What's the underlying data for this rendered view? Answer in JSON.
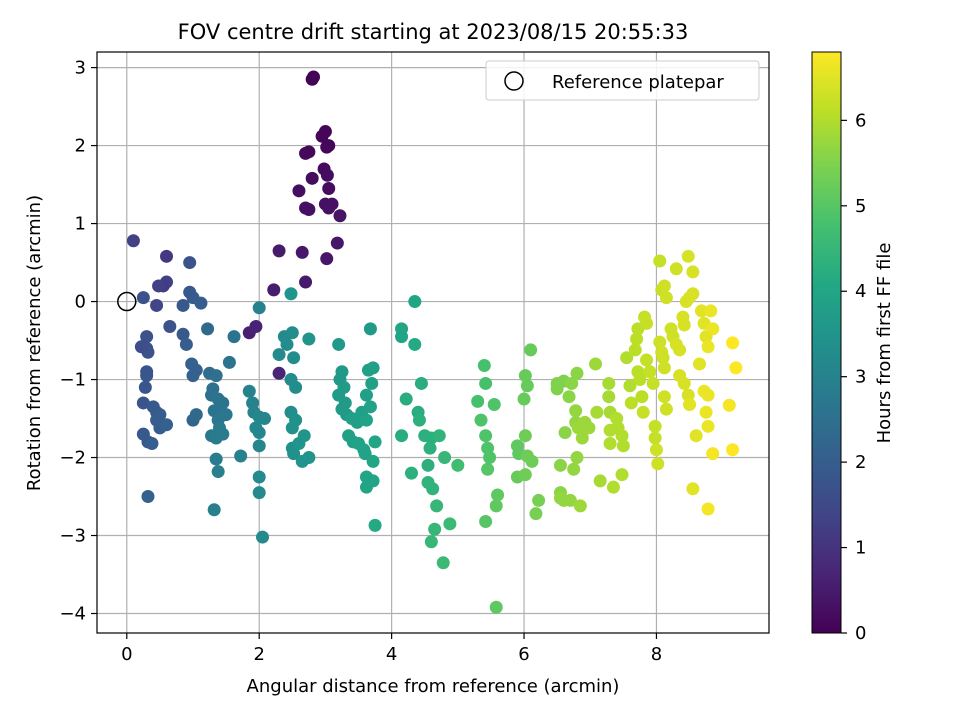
{
  "chart_data": {
    "type": "scatter",
    "title": "FOV centre drift starting at 2023/08/15 20:55:33",
    "xlabel": "Angular distance from reference (arcmin)",
    "ylabel": "Rotation from reference (arcmin)",
    "xlim": [
      -0.45,
      9.7
    ],
    "ylim": [
      -4.25,
      3.2
    ],
    "x_ticks": [
      0,
      2,
      4,
      6,
      8
    ],
    "y_ticks": [
      -4,
      -3,
      -2,
      -1,
      0,
      1,
      2,
      3
    ],
    "x_tick_labels": [
      "0",
      "2",
      "4",
      "6",
      "8"
    ],
    "y_tick_labels": [
      "−4",
      "−3",
      "−2",
      "−1",
      "0",
      "1",
      "2",
      "3"
    ],
    "grid": true,
    "legend": {
      "position": "top-right",
      "entries": [
        {
          "label": "Reference platepar",
          "marker": "open-circle"
        }
      ]
    },
    "reference_point": {
      "x": 0,
      "y": 0
    },
    "colorbar": {
      "label": "Hours from first FF file",
      "colormap": "viridis",
      "range": [
        0,
        6.8
      ],
      "ticks": [
        0,
        1,
        2,
        3,
        4,
        5,
        6
      ],
      "tick_labels": [
        "0",
        "1",
        "2",
        "3",
        "4",
        "5",
        "6"
      ]
    },
    "points": [
      [
        2.8,
        2.85,
        0.05
      ],
      [
        2.82,
        2.88,
        0.05
      ],
      [
        2.95,
        2.12,
        0.1
      ],
      [
        3.0,
        2.18,
        0.1
      ],
      [
        3.02,
        1.98,
        0.12
      ],
      [
        3.05,
        2.0,
        0.12
      ],
      [
        2.7,
        1.9,
        0.15
      ],
      [
        2.75,
        1.92,
        0.15
      ],
      [
        2.8,
        1.58,
        0.2
      ],
      [
        2.98,
        1.7,
        0.2
      ],
      [
        3.03,
        1.62,
        0.22
      ],
      [
        3.05,
        1.45,
        0.22
      ],
      [
        2.6,
        1.42,
        0.25
      ],
      [
        2.7,
        1.2,
        0.28
      ],
      [
        2.75,
        1.18,
        0.28
      ],
      [
        3.0,
        1.25,
        0.3
      ],
      [
        3.05,
        1.2,
        0.3
      ],
      [
        3.1,
        1.25,
        0.32
      ],
      [
        3.22,
        1.1,
        0.35
      ],
      [
        3.18,
        0.75,
        0.4
      ],
      [
        3.02,
        0.55,
        0.42
      ],
      [
        2.65,
        0.63,
        0.45
      ],
      [
        2.3,
        0.65,
        0.5
      ],
      [
        2.22,
        0.15,
        0.55
      ],
      [
        2.7,
        0.25,
        0.5
      ],
      [
        1.85,
        -0.4,
        0.6
      ],
      [
        1.95,
        -0.32,
        0.65
      ],
      [
        2.3,
        -0.92,
        0.7
      ],
      [
        0.1,
        0.78,
        1.3
      ],
      [
        0.6,
        0.58,
        1.1
      ],
      [
        0.6,
        0.25,
        1.3
      ],
      [
        0.55,
        0.2,
        1.2
      ],
      [
        0.48,
        0.2,
        1.3
      ],
      [
        0.95,
        0.5,
        1.7
      ],
      [
        0.25,
        0.05,
        1.7
      ],
      [
        0.45,
        -0.05,
        1.4
      ],
      [
        0.85,
        -0.05,
        1.9
      ],
      [
        1.0,
        0.05,
        2.0
      ],
      [
        0.95,
        0.12,
        1.9
      ],
      [
        1.12,
        -0.02,
        2.0
      ],
      [
        0.65,
        -0.32,
        1.7
      ],
      [
        0.85,
        -0.42,
        1.9
      ],
      [
        0.9,
        -0.55,
        2.0
      ],
      [
        0.3,
        -0.45,
        1.7
      ],
      [
        0.3,
        -0.6,
        1.7
      ],
      [
        0.32,
        -0.65,
        1.7
      ],
      [
        0.22,
        -0.58,
        1.6
      ],
      [
        0.3,
        -0.9,
        1.8
      ],
      [
        0.3,
        -0.95,
        1.8
      ],
      [
        0.28,
        -1.1,
        1.8
      ],
      [
        0.98,
        -0.8,
        2.1
      ],
      [
        1.05,
        -0.88,
        2.1
      ],
      [
        1.0,
        -0.95,
        2.1
      ],
      [
        1.22,
        -0.35,
        2.3
      ],
      [
        0.25,
        -1.3,
        1.8
      ],
      [
        0.4,
        -1.35,
        1.9
      ],
      [
        0.45,
        -1.42,
        1.9
      ],
      [
        0.5,
        -1.45,
        2.0
      ],
      [
        0.45,
        -1.52,
        2.0
      ],
      [
        0.5,
        -1.62,
        2.0
      ],
      [
        0.6,
        -1.58,
        2.1
      ],
      [
        0.25,
        -1.7,
        1.9
      ],
      [
        0.32,
        -1.8,
        1.9
      ],
      [
        0.38,
        -1.82,
        2.0
      ],
      [
        1.0,
        -1.52,
        2.2
      ],
      [
        1.05,
        -1.45,
        2.3
      ],
      [
        0.32,
        -2.5,
        2.1
      ],
      [
        1.25,
        -0.92,
        2.4
      ],
      [
        1.35,
        -0.95,
        2.5
      ],
      [
        1.3,
        -1.12,
        2.5
      ],
      [
        1.28,
        -1.2,
        2.5
      ],
      [
        1.38,
        -1.25,
        2.6
      ],
      [
        1.45,
        -1.3,
        2.6
      ],
      [
        1.32,
        -1.4,
        2.6
      ],
      [
        1.42,
        -1.42,
        2.6
      ],
      [
        1.5,
        -1.45,
        2.7
      ],
      [
        1.38,
        -1.52,
        2.7
      ],
      [
        1.28,
        -1.72,
        2.7
      ],
      [
        1.35,
        -1.75,
        2.8
      ],
      [
        1.45,
        -1.7,
        2.8
      ],
      [
        1.4,
        -1.62,
        2.8
      ],
      [
        1.55,
        -0.78,
        2.6
      ],
      [
        1.62,
        -0.45,
        2.6
      ],
      [
        1.72,
        -1.98,
        2.9
      ],
      [
        1.35,
        -2.02,
        2.8
      ],
      [
        1.38,
        -2.18,
        2.9
      ],
      [
        1.32,
        -2.67,
        2.9
      ],
      [
        1.85,
        -1.15,
        3.0
      ],
      [
        1.9,
        -1.3,
        3.0
      ],
      [
        1.92,
        -1.42,
        3.0
      ],
      [
        2.0,
        -1.48,
        3.1
      ],
      [
        2.08,
        -1.5,
        3.1
      ],
      [
        1.95,
        -1.62,
        3.1
      ],
      [
        2.0,
        -1.68,
        3.1
      ],
      [
        2.0,
        -1.85,
        3.1
      ],
      [
        2.0,
        -2.25,
        3.2
      ],
      [
        2.0,
        -2.45,
        3.2
      ],
      [
        2.05,
        -3.02,
        3.2
      ],
      [
        2.0,
        -0.08,
        3.0
      ],
      [
        2.3,
        -0.68,
        3.2
      ],
      [
        2.38,
        -0.45,
        3.2
      ],
      [
        2.42,
        -0.55,
        3.3
      ],
      [
        2.5,
        -0.4,
        3.3
      ],
      [
        2.52,
        -0.72,
        3.3
      ],
      [
        2.48,
        -1.0,
        3.3
      ],
      [
        2.55,
        -1.1,
        3.3
      ],
      [
        2.48,
        -1.42,
        3.3
      ],
      [
        2.5,
        -1.62,
        3.4
      ],
      [
        2.55,
        -1.52,
        3.4
      ],
      [
        2.5,
        -1.88,
        3.4
      ],
      [
        2.52,
        -1.95,
        3.4
      ],
      [
        2.6,
        -1.82,
        3.5
      ],
      [
        2.65,
        -2.05,
        3.5
      ],
      [
        2.75,
        -2.0,
        3.5
      ],
      [
        2.68,
        -1.72,
        3.5
      ],
      [
        2.75,
        -0.48,
        3.5
      ],
      [
        2.48,
        0.1,
        3.5
      ],
      [
        3.2,
        -0.55,
        3.6
      ],
      [
        3.25,
        -0.9,
        3.6
      ],
      [
        3.22,
        -1.0,
        3.6
      ],
      [
        3.28,
        -1.1,
        3.7
      ],
      [
        3.2,
        -1.2,
        3.7
      ],
      [
        3.3,
        -1.3,
        3.7
      ],
      [
        3.25,
        -1.38,
        3.7
      ],
      [
        3.32,
        -1.45,
        3.7
      ],
      [
        3.4,
        -1.5,
        3.8
      ],
      [
        3.48,
        -1.55,
        3.8
      ],
      [
        3.55,
        -1.42,
        3.8
      ],
      [
        3.35,
        -1.72,
        3.8
      ],
      [
        3.42,
        -1.8,
        3.8
      ],
      [
        3.5,
        -1.82,
        3.9
      ],
      [
        3.58,
        -1.9,
        3.9
      ],
      [
        3.6,
        -1.95,
        3.9
      ],
      [
        3.62,
        -1.2,
        3.8
      ],
      [
        3.68,
        -1.35,
        3.9
      ],
      [
        3.7,
        -1.05,
        3.8
      ],
      [
        3.65,
        -0.88,
        3.8
      ],
      [
        3.72,
        -0.85,
        3.8
      ],
      [
        3.68,
        -0.35,
        3.7
      ],
      [
        3.62,
        -1.52,
        3.9
      ],
      [
        3.75,
        -1.8,
        4.0
      ],
      [
        3.72,
        -2.05,
        4.0
      ],
      [
        3.62,
        -2.25,
        4.0
      ],
      [
        3.65,
        -2.28,
        4.0
      ],
      [
        3.72,
        -2.3,
        4.0
      ],
      [
        3.62,
        -2.38,
        4.0
      ],
      [
        3.75,
        -2.87,
        4.1
      ],
      [
        4.15,
        -0.35,
        4.0
      ],
      [
        4.15,
        -0.45,
        4.0
      ],
      [
        4.35,
        -0.55,
        4.1
      ],
      [
        4.35,
        0.0,
        4.0
      ],
      [
        4.22,
        -1.25,
        4.2
      ],
      [
        4.45,
        -1.05,
        4.2
      ],
      [
        4.15,
        -1.72,
        4.2
      ],
      [
        4.4,
        -1.42,
        4.2
      ],
      [
        4.42,
        -1.52,
        4.3
      ],
      [
        4.5,
        -1.72,
        4.3
      ],
      [
        4.6,
        -1.75,
        4.3
      ],
      [
        4.72,
        -1.72,
        4.4
      ],
      [
        4.58,
        -1.88,
        4.3
      ],
      [
        4.55,
        -2.1,
        4.3
      ],
      [
        4.3,
        -2.2,
        4.3
      ],
      [
        4.55,
        -2.32,
        4.4
      ],
      [
        4.62,
        -2.4,
        4.4
      ],
      [
        4.8,
        -2.0,
        4.5
      ],
      [
        4.68,
        -2.62,
        4.5
      ],
      [
        4.65,
        -2.92,
        4.5
      ],
      [
        4.6,
        -3.08,
        4.5
      ],
      [
        4.78,
        -3.35,
        4.6
      ],
      [
        4.88,
        -2.85,
        4.6
      ],
      [
        5.0,
        -2.1,
        4.7
      ],
      [
        5.4,
        -0.82,
        4.8
      ],
      [
        5.42,
        -1.05,
        4.8
      ],
      [
        5.3,
        -1.28,
        4.8
      ],
      [
        5.55,
        -1.32,
        4.9
      ],
      [
        5.35,
        -1.52,
        4.9
      ],
      [
        5.42,
        -1.72,
        4.9
      ],
      [
        5.45,
        -1.88,
        4.9
      ],
      [
        5.48,
        -2.0,
        4.9
      ],
      [
        5.45,
        -2.15,
        5.0
      ],
      [
        5.42,
        -2.82,
        5.0
      ],
      [
        5.6,
        -2.48,
        5.1
      ],
      [
        5.58,
        -2.62,
        5.1
      ],
      [
        5.58,
        -3.92,
        5.1
      ],
      [
        5.9,
        -1.85,
        5.1
      ],
      [
        5.92,
        -1.95,
        5.1
      ],
      [
        5.9,
        -2.25,
        5.2
      ],
      [
        6.02,
        -0.95,
        5.2
      ],
      [
        6.05,
        -1.08,
        5.2
      ],
      [
        6.0,
        -1.25,
        5.2
      ],
      [
        6.02,
        -1.72,
        5.3
      ],
      [
        6.05,
        -1.98,
        5.3
      ],
      [
        6.12,
        -2.05,
        5.3
      ],
      [
        6.02,
        -2.22,
        5.3
      ],
      [
        6.1,
        -0.62,
        5.2
      ],
      [
        6.22,
        -2.55,
        5.4
      ],
      [
        6.18,
        -2.72,
        5.4
      ],
      [
        6.5,
        -1.05,
        5.5
      ],
      [
        6.5,
        -1.12,
        5.5
      ],
      [
        6.6,
        -1.02,
        5.5
      ],
      [
        6.72,
        -1.05,
        5.6
      ],
      [
        6.68,
        -1.22,
        5.6
      ],
      [
        6.62,
        -1.68,
        5.6
      ],
      [
        6.55,
        -2.1,
        5.6
      ],
      [
        6.55,
        -2.45,
        5.6
      ],
      [
        6.55,
        -2.52,
        5.7
      ],
      [
        6.6,
        -2.55,
        5.7
      ],
      [
        6.7,
        -2.55,
        5.7
      ],
      [
        6.75,
        -2.15,
        5.7
      ],
      [
        6.8,
        -2.0,
        5.7
      ],
      [
        6.85,
        -2.62,
        5.8
      ],
      [
        6.8,
        -0.92,
        5.6
      ],
      [
        6.78,
        -1.4,
        5.7
      ],
      [
        6.78,
        -1.55,
        5.7
      ],
      [
        6.82,
        -1.62,
        5.8
      ],
      [
        6.88,
        -1.75,
        5.8
      ],
      [
        6.92,
        -1.55,
        5.8
      ],
      [
        6.98,
        -1.62,
        5.8
      ],
      [
        7.08,
        -0.8,
        5.8
      ],
      [
        7.1,
        -1.42,
        5.9
      ],
      [
        7.15,
        -2.3,
        5.9
      ],
      [
        7.28,
        -1.05,
        5.9
      ],
      [
        7.28,
        -1.22,
        5.9
      ],
      [
        7.3,
        -1.42,
        5.9
      ],
      [
        7.3,
        -1.65,
        6.0
      ],
      [
        7.3,
        -1.82,
        6.0
      ],
      [
        7.35,
        -2.38,
        6.0
      ],
      [
        7.4,
        -1.5,
        6.0
      ],
      [
        7.42,
        -1.62,
        6.0
      ],
      [
        7.48,
        -1.72,
        6.0
      ],
      [
        7.5,
        -1.85,
        6.0
      ],
      [
        7.48,
        -2.22,
        6.0
      ],
      [
        7.55,
        -0.72,
        6.0
      ],
      [
        7.6,
        -1.08,
        6.0
      ],
      [
        7.62,
        -1.3,
        6.1
      ],
      [
        7.68,
        -0.62,
        6.1
      ],
      [
        7.7,
        -0.48,
        6.1
      ],
      [
        7.72,
        -0.35,
        6.1
      ],
      [
        7.72,
        -0.9,
        6.1
      ],
      [
        7.75,
        -1.0,
        6.1
      ],
      [
        7.78,
        -1.22,
        6.1
      ],
      [
        7.8,
        -1.42,
        6.2
      ],
      [
        7.82,
        -0.2,
        6.2
      ],
      [
        7.85,
        -0.28,
        6.2
      ],
      [
        7.85,
        -0.75,
        6.2
      ],
      [
        7.9,
        -0.9,
        6.2
      ],
      [
        7.95,
        -1.05,
        6.2
      ],
      [
        7.98,
        -1.6,
        6.2
      ],
      [
        7.98,
        -1.75,
        6.2
      ],
      [
        8.0,
        -1.9,
        6.3
      ],
      [
        8.02,
        -2.08,
        6.3
      ],
      [
        8.05,
        -0.52,
        6.3
      ],
      [
        8.08,
        -0.65,
        6.3
      ],
      [
        8.1,
        -0.72,
        6.3
      ],
      [
        8.12,
        -0.85,
        6.3
      ],
      [
        8.12,
        -1.22,
        6.3
      ],
      [
        8.15,
        -1.38,
        6.3
      ],
      [
        8.05,
        0.52,
        6.2
      ],
      [
        8.08,
        0.15,
        6.2
      ],
      [
        8.12,
        0.2,
        6.3
      ],
      [
        8.15,
        0.05,
        6.3
      ],
      [
        8.22,
        -0.35,
        6.3
      ],
      [
        8.25,
        -0.45,
        6.3
      ],
      [
        8.3,
        -0.55,
        6.4
      ],
      [
        8.35,
        -0.62,
        6.4
      ],
      [
        8.4,
        -0.2,
        6.4
      ],
      [
        8.42,
        -0.3,
        6.4
      ],
      [
        8.45,
        0.0,
        6.4
      ],
      [
        8.5,
        0.05,
        6.4
      ],
      [
        8.55,
        0.1,
        6.4
      ],
      [
        8.3,
        0.42,
        6.3
      ],
      [
        8.48,
        0.58,
        6.4
      ],
      [
        8.55,
        0.38,
        6.4
      ],
      [
        8.35,
        -0.95,
        6.4
      ],
      [
        8.42,
        -1.05,
        6.4
      ],
      [
        8.48,
        -1.2,
        6.4
      ],
      [
        8.5,
        -1.32,
        6.5
      ],
      [
        8.6,
        -1.72,
        6.5
      ],
      [
        8.55,
        -2.4,
        6.5
      ],
      [
        8.65,
        -0.8,
        6.5
      ],
      [
        8.68,
        -0.12,
        6.5
      ],
      [
        8.72,
        -0.28,
        6.5
      ],
      [
        8.75,
        -0.45,
        6.5
      ],
      [
        8.78,
        -0.58,
        6.6
      ],
      [
        8.72,
        -1.15,
        6.6
      ],
      [
        8.78,
        -1.2,
        6.6
      ],
      [
        8.75,
        -1.42,
        6.6
      ],
      [
        8.78,
        -1.6,
        6.6
      ],
      [
        8.82,
        -0.12,
        6.6
      ],
      [
        8.85,
        -0.35,
        6.6
      ],
      [
        8.78,
        -2.66,
        6.7
      ],
      [
        8.85,
        -1.95,
        6.7
      ],
      [
        9.1,
        -1.33,
        6.7
      ],
      [
        9.15,
        -0.53,
        6.8
      ],
      [
        9.2,
        -0.85,
        6.8
      ],
      [
        9.15,
        -1.9,
        6.8
      ]
    ]
  }
}
